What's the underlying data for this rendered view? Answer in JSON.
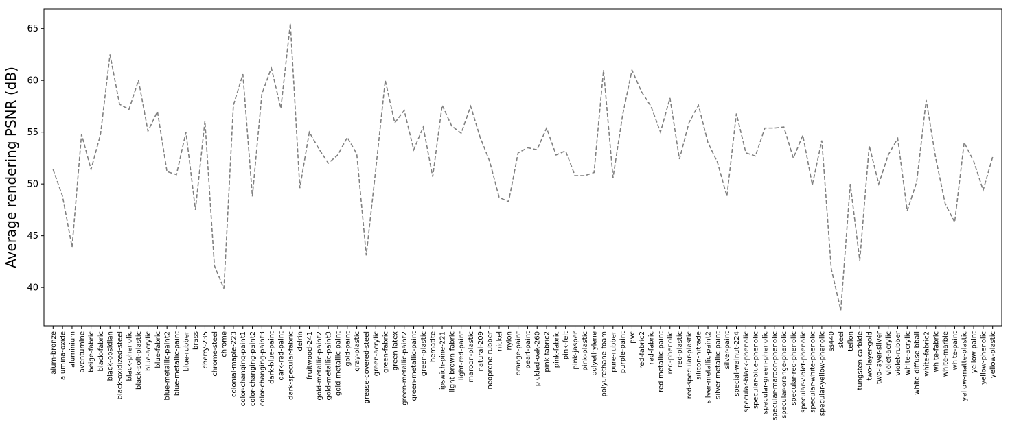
{
  "chart_data": {
    "type": "line",
    "title": "",
    "xlabel": "",
    "ylabel": "Average rendering PSNR (dB)",
    "ylim": [
      36.3,
      66.9
    ],
    "yticks": [
      40,
      45,
      50,
      55,
      60,
      65
    ],
    "grid": false,
    "line_style": "dashed",
    "line_color": "#808080",
    "categories": [
      "alum-bronze",
      "alumina-oxide",
      "aluminium",
      "aventurnine",
      "beige-fabric",
      "black-fabric",
      "black-obsidian",
      "black-oxidized-steel",
      "black-phenolic",
      "black-soft-plastic",
      "blue-acrylic",
      "blue-fabric",
      "blue-metallic-paint2",
      "blue-metallic-paint",
      "blue-rubber",
      "brass",
      "cherry-235",
      "chrome-steel",
      "chrome",
      "colonial-maple-223",
      "color-changing-paint1",
      "color-changing-paint2",
      "color-changing-paint3",
      "dark-blue-paint",
      "dark-red-paint",
      "dark-specular-fabric",
      "delrin",
      "fruitwood-241",
      "gold-metallic-paint2",
      "gold-metallic-paint3",
      "gold-metallic-paint",
      "gold-paint",
      "gray-plastic",
      "grease-covered-steel",
      "green-acrylic",
      "green-fabric",
      "green-latex",
      "green-metallic-paint2",
      "green-metallic-paint",
      "green-plastic",
      "hematite",
      "ipswich-pine-221",
      "light-brown-fabric",
      "light-red-paint",
      "maroon-plastic",
      "natural-209",
      "neoprene-rubber",
      "nickel",
      "nylon",
      "orange-paint",
      "pearl-paint",
      "pickled-oak-260",
      "pink-fabric2",
      "pink-fabric",
      "pink-felt",
      "pink-jasper",
      "pink-plastic",
      "polyethylene",
      "polyurethane-foam",
      "pure-rubber",
      "purple-paint",
      "pvc",
      "red-fabric2",
      "red-fabric",
      "red-metallic-paint",
      "red-phenolic",
      "red-plastic",
      "red-specular-plastic",
      "silicon-nitrade",
      "silver-metallic-paint2",
      "silver-metallic-paint",
      "silver-paint",
      "special-walnut-224",
      "specular-black-phenolic",
      "specular-blue-phenolic",
      "specular-green-phenolic",
      "specular-maroon-phenolic",
      "specular-orange-phenolic",
      "specular-red-phenolic",
      "specular-violet-phenolic",
      "specular-white-phenolic",
      "specular-yellow-phenolic",
      "ss440",
      "steel",
      "teflon",
      "tungsten-carbide",
      "two-layer-gold",
      "two-layer-silver",
      "violet-acrylic",
      "violet-rubber",
      "white-acrylic",
      "white-diffuse-bball",
      "white-fabric2",
      "white-fabric",
      "white-marble",
      "white-paint",
      "yellow-matte-plastic",
      "yellow-paint",
      "yellow-phenolic",
      "yellow-plastic"
    ],
    "series": [
      {
        "values": [
          51.4,
          48.8,
          43.9,
          54.8,
          51.4,
          54.8,
          62.5,
          57.7,
          57.2,
          60.0,
          55.1,
          57.0,
          51.2,
          50.9,
          55.0,
          47.5,
          56.1,
          42.1,
          39.9,
          57.6,
          60.6,
          48.8,
          58.7,
          61.2,
          57.3,
          65.5,
          49.6,
          55.0,
          53.4,
          52.0,
          52.8,
          54.5,
          52.9,
          43.1,
          51.4,
          60.0,
          55.9,
          57.1,
          53.3,
          55.5,
          50.7,
          57.6,
          55.6,
          54.9,
          57.5,
          54.5,
          52.2,
          48.7,
          48.3,
          53.0,
          53.5,
          53.3,
          55.4,
          52.8,
          53.2,
          50.8,
          50.8,
          51.1,
          61.0,
          50.6,
          56.6,
          61.0,
          58.9,
          57.5,
          55.0,
          58.3,
          52.4,
          55.9,
          57.6,
          54.0,
          52.1,
          48.8,
          56.8,
          53.0,
          52.7,
          55.4,
          55.4,
          55.5,
          52.5,
          54.7,
          49.9,
          54.2,
          41.8,
          37.8,
          50.0,
          42.6,
          53.7,
          50.0,
          52.8,
          54.4,
          47.4,
          50.2,
          58.1,
          52.5,
          48.1,
          46.3,
          54.0,
          52.2,
          49.4,
          52.6
        ]
      }
    ]
  }
}
